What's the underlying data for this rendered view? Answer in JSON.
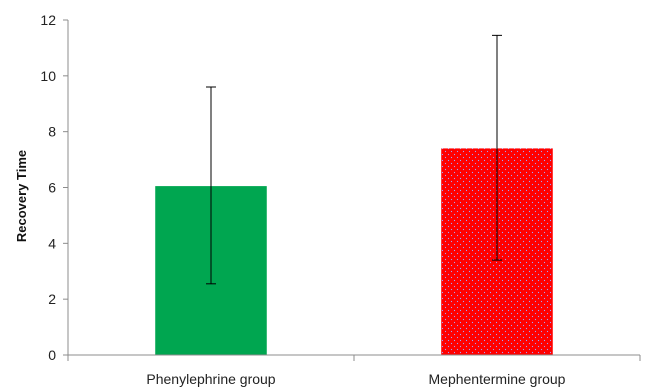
{
  "chart_data": {
    "type": "bar",
    "title": "",
    "xlabel": "",
    "ylabel": "Recovery Time",
    "ylim": [
      0,
      12
    ],
    "yticks": [
      0,
      2,
      4,
      6,
      8,
      10,
      12
    ],
    "grid": false,
    "categories": [
      "Phenylephrine group",
      "Mephentermine group"
    ],
    "values": [
      6.05,
      7.4
    ],
    "error_low": [
      2.55,
      3.4
    ],
    "error_high": [
      9.6,
      11.45
    ],
    "colors": [
      "#00a650",
      "#ff0000"
    ]
  }
}
